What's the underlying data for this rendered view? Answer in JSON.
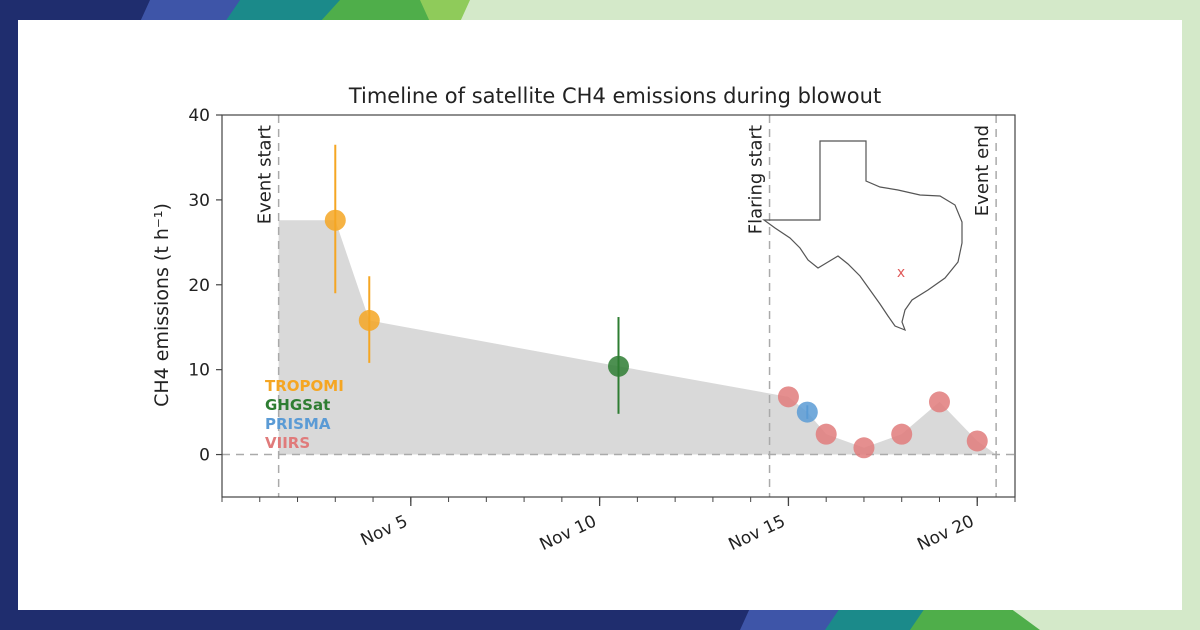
{
  "chart_data": {
    "type": "scatter",
    "title": "Timeline of satellite CH4 emissions during blowout",
    "ylabel": "CH4 emissions (t h⁻¹)",
    "xlabel": "",
    "ylim": [
      -5,
      40
    ],
    "xlim": [
      "Oct 31",
      "Nov 21"
    ],
    "x_ticks": [
      {
        "date": "Nov 5",
        "label": "Nov 5"
      },
      {
        "date": "Nov 10",
        "label": "Nov 10"
      },
      {
        "date": "Nov 15",
        "label": "Nov 15"
      },
      {
        "date": "Nov 20",
        "label": "Nov 20"
      }
    ],
    "y_ticks": [
      0,
      10,
      20,
      30,
      40
    ],
    "grid": false,
    "events": [
      {
        "date": "Nov 1.5",
        "label": "Event start"
      },
      {
        "date": "Nov 14.5",
        "label": "Flaring start"
      },
      {
        "date": "Nov 20.5",
        "label": "Event end"
      }
    ],
    "envelope": {
      "color": "#d9d9d9",
      "points": [
        {
          "x": "Nov 1.5",
          "y": 27.6
        },
        {
          "x": "Nov 3",
          "y": 27.6
        },
        {
          "x": "Nov 3.9",
          "y": 15.8
        },
        {
          "x": "Nov 10.5",
          "y": 10.4
        },
        {
          "x": "Nov 15",
          "y": 6.8
        },
        {
          "x": "Nov 15.5",
          "y": 5
        },
        {
          "x": "Nov 16",
          "y": 2.4
        },
        {
          "x": "Nov 17",
          "y": 0.8
        },
        {
          "x": "Nov 18",
          "y": 2.4
        },
        {
          "x": "Nov 19",
          "y": 6.2
        },
        {
          "x": "Nov 20",
          "y": 1.6
        },
        {
          "x": "Nov 20.5",
          "y": 0
        }
      ]
    },
    "legend": {
      "position": "left-middle"
    },
    "series": [
      {
        "name": "TROPOMI",
        "color": "#f5a623",
        "points": [
          {
            "x": "Nov 3",
            "y": 27.6,
            "y_low": 19.0,
            "y_high": 36.5
          },
          {
            "x": "Nov 3.9",
            "y": 15.8,
            "y_low": 10.8,
            "y_high": 21.0
          }
        ]
      },
      {
        "name": "GHGSat",
        "color": "#2e7d32",
        "points": [
          {
            "x": "Nov 10.5",
            "y": 10.4,
            "y_low": 4.8,
            "y_high": 16.2
          }
        ]
      },
      {
        "name": "PRISMA",
        "color": "#5b9bd5",
        "points": [
          {
            "x": "Nov 15.5",
            "y": 5.0,
            "y_low": 4.2,
            "y_high": 5.8
          }
        ]
      },
      {
        "name": "VIIRS",
        "color": "#e07b7b",
        "points": [
          {
            "x": "Nov 15",
            "y": 6.8
          },
          {
            "x": "Nov 16",
            "y": 2.4
          },
          {
            "x": "Nov 17",
            "y": 0.8
          },
          {
            "x": "Nov 18",
            "y": 2.4
          },
          {
            "x": "Nov 19",
            "y": 6.2
          },
          {
            "x": "Nov 20",
            "y": 1.6
          }
        ]
      }
    ],
    "inset": {
      "type": "map",
      "region": "Texas",
      "marker": "x",
      "marker_color": "#e05a5a"
    }
  }
}
